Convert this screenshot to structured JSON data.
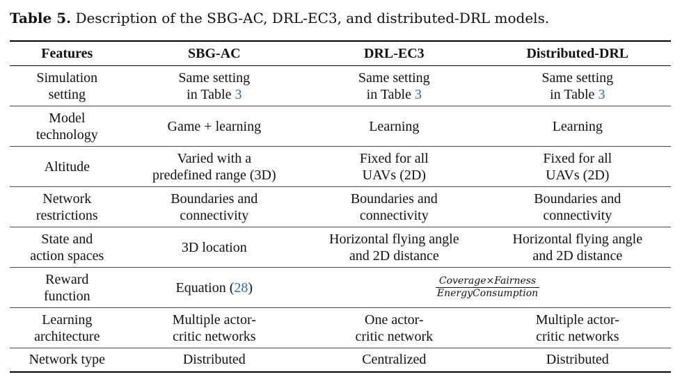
{
  "caption": {
    "label": "Table 5.",
    "text": "Description of the SBG-AC, DRL-EC3, and distributed-DRL models."
  },
  "headers": [
    "Features",
    "SBG-AC",
    "DRL-EC3",
    "Distributed-DRL"
  ],
  "rows": [
    {
      "feature": [
        "Simulation",
        "setting"
      ],
      "sbg": [
        "Same setting",
        "in Table "
      ],
      "sbg_ref": "3",
      "drl": [
        "Same setting",
        "in Table "
      ],
      "drl_ref": "3",
      "dist": [
        "Same setting",
        "in Table "
      ],
      "dist_ref": "3"
    },
    {
      "feature": [
        "Model",
        "technology"
      ],
      "sbg": "Game + learning",
      "drl": "Learning",
      "dist": "Learning"
    },
    {
      "feature": "Altitude",
      "sbg": [
        "Varied with a",
        "predefined range (3D)"
      ],
      "drl": [
        "Fixed for all",
        "UAVs (2D)"
      ],
      "dist": [
        "Fixed for all",
        "UAVs (2D)"
      ]
    },
    {
      "feature": [
        "Network",
        "restrictions"
      ],
      "sbg": [
        "Boundaries and",
        "connectivity"
      ],
      "drl": [
        "Boundaries and",
        "connectivity"
      ],
      "dist": [
        "Boundaries and",
        "connectivity"
      ]
    },
    {
      "feature": [
        "State and",
        "action spaces"
      ],
      "sbg": "3D location",
      "drl": [
        "Horizontal flying angle",
        "and 2D distance"
      ],
      "dist": [
        "Horizontal flying angle",
        "and 2D distance"
      ]
    },
    {
      "feature": [
        "Reward",
        "function"
      ],
      "sbg": "Equation (",
      "sbg_ref": "28",
      "sbg_close": ")",
      "shared": {
        "numerator": "Coverage×Fairness",
        "denominator": "EnergyConsumption"
      }
    },
    {
      "feature": [
        "Learning",
        "architecture"
      ],
      "sbg": [
        "Multiple actor-",
        "critic networks"
      ],
      "drl": [
        "One actor-",
        "critic network"
      ],
      "dist": [
        "Multiple actor-",
        "critic networks"
      ]
    },
    {
      "feature": "Network type",
      "sbg": "Distributed",
      "drl": "Centralized",
      "dist": "Distributed"
    }
  ]
}
